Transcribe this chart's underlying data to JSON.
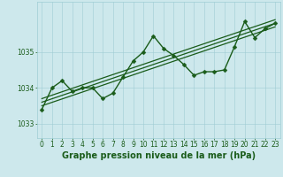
{
  "title": "Graphe pression niveau de la mer (hPa)",
  "xlabel_ticks": [
    0,
    1,
    2,
    3,
    4,
    5,
    6,
    7,
    8,
    9,
    10,
    11,
    12,
    13,
    14,
    15,
    16,
    17,
    18,
    19,
    20,
    21,
    22,
    23
  ],
  "yticks": [
    1033,
    1034,
    1035
  ],
  "ylim": [
    1032.6,
    1036.4
  ],
  "xlim": [
    -0.5,
    23.5
  ],
  "bg_color": "#cde8ec",
  "grid_color": "#9fcdd4",
  "line_color": "#1a5c1a",
  "trend_color": "#1a5c1a",
  "pressure_data": [
    1033.4,
    1034.0,
    1034.2,
    1033.9,
    1034.0,
    1034.0,
    1033.7,
    1033.85,
    1034.3,
    1034.75,
    1035.0,
    1035.45,
    1035.1,
    1034.9,
    1034.65,
    1034.35,
    1034.45,
    1034.45,
    1034.5,
    1035.15,
    1035.85,
    1035.4,
    1035.65,
    1035.8
  ],
  "trend_line_1": [
    1033.5,
    1035.7
  ],
  "trend_line_2": [
    1033.6,
    1035.8
  ],
  "trend_line_3": [
    1033.7,
    1035.9
  ],
  "font_color": "#1a5c1a",
  "marker_size": 2.5,
  "linewidth": 1.0,
  "trend_linewidth": 0.9,
  "title_fontsize": 7.0,
  "tick_fontsize": 5.5
}
